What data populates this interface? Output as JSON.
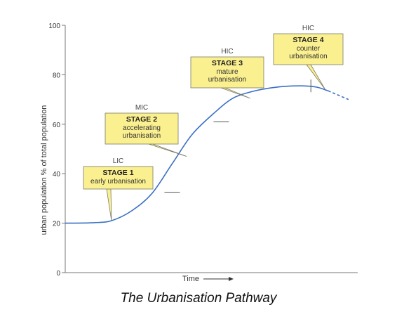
{
  "caption": "The Urbanisation Pathway",
  "chart_data": {
    "type": "line",
    "title": "",
    "xlabel": "Time",
    "ylabel": "urban population % of total population",
    "ylim": [
      0,
      100
    ],
    "yticks": [
      0,
      20,
      40,
      60,
      80,
      100
    ],
    "xlim": [
      0,
      1
    ],
    "grid": false,
    "colors": {
      "line": "#3a6fc4",
      "box_fill": "#fbf08f",
      "box_border": "#7a7a6a",
      "axis": "#777777"
    },
    "series": [
      {
        "values_x": [
          0.0,
          0.1,
          0.16,
          0.23,
          0.3,
          0.37,
          0.44,
          0.52,
          0.58,
          0.64,
          0.7,
          0.76,
          0.82,
          0.87,
          0.91,
          0.98
        ],
        "values_y": [
          20,
          20.2,
          21,
          25,
          32,
          44,
          56,
          65,
          70.5,
          73,
          74.5,
          75.3,
          75.5,
          75,
          73.5,
          70
        ],
        "projected_from_x": 0.9
      }
    ],
    "stage_markers": [
      {
        "x": 0.37,
        "y": 32.5
      },
      {
        "x": 0.54,
        "y": 61
      },
      {
        "x": 0.85,
        "y": 75.5
      }
    ],
    "annotations": [
      {
        "income": "LIC",
        "stage": "STAGE 1",
        "lines": [
          "early urbanisation"
        ],
        "point_x": 0.16,
        "point_y": 21
      },
      {
        "income": "MIC",
        "stage": "STAGE 2",
        "lines": [
          "accelerating",
          "urbanisation"
        ],
        "point_x": 0.42,
        "point_y": 47
      },
      {
        "income": "HIC",
        "stage": "STAGE 3",
        "lines": [
          "mature",
          "urbanisation"
        ],
        "point_x": 0.64,
        "point_y": 70.5
      },
      {
        "income": "HIC",
        "stage": "STAGE 4",
        "lines": [
          "counter",
          "urbanisation"
        ],
        "point_x": 0.9,
        "point_y": 74
      }
    ]
  }
}
